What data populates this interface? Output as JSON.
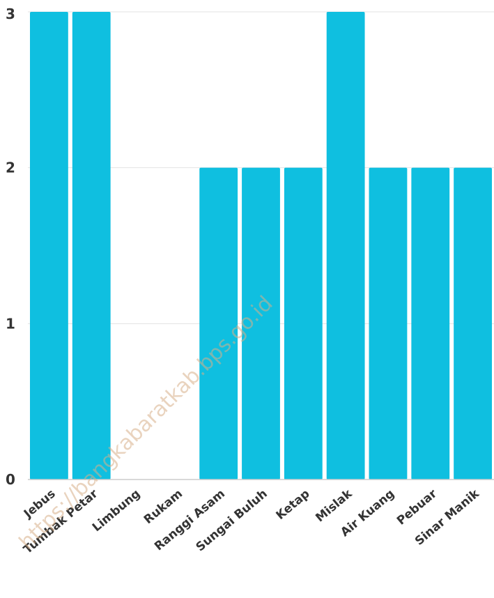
{
  "chart_data": {
    "type": "bar",
    "categories": [
      "Jebus",
      "Tumbak Petar",
      "Limbung",
      "Rukam",
      "Ranggi Asam",
      "Sungai Buluh",
      "Ketap",
      "Mislak",
      "Air Kuang",
      "Pebuar",
      "Sinar Manik"
    ],
    "values": [
      3,
      3,
      0,
      0,
      2,
      2,
      2,
      3,
      2,
      2,
      2
    ],
    "ylim": [
      0,
      3
    ],
    "yticks": [
      "0",
      "1",
      "2",
      "3"
    ],
    "bar_color": "#0fbfe0",
    "grid": true,
    "watermark": "https://bangkabaratkab.bps.go.id"
  }
}
